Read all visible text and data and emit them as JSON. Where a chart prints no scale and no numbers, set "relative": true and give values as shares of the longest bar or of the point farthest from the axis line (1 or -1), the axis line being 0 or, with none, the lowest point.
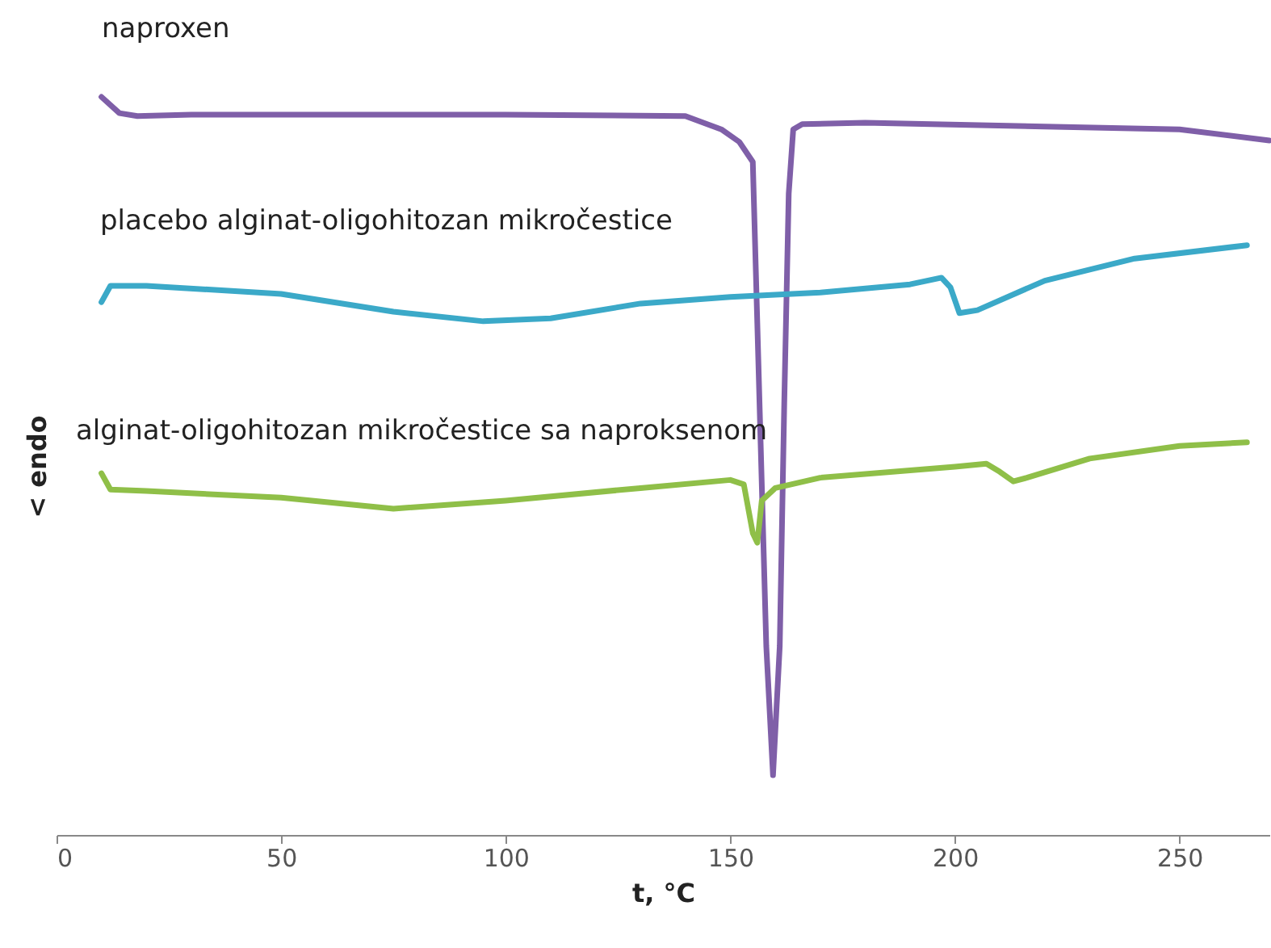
{
  "chart_data": {
    "type": "line",
    "relative": true,
    "xlabel": "t, °C",
    "ylabel": "< endo",
    "xlim": [
      0,
      270
    ],
    "xticks": [
      0,
      50,
      100,
      150,
      200,
      250
    ],
    "grid": false,
    "marker": "none",
    "line_style": "solid",
    "series": [
      {
        "name": "naproxen",
        "color": "#7f5fa8",
        "x": [
          10,
          14,
          18,
          30,
          100,
          140,
          148,
          152,
          155,
          156,
          158,
          159.5,
          161,
          162,
          163,
          164,
          166,
          180,
          250,
          270
        ],
        "values": [
          1.0,
          0.978,
          0.974,
          0.976,
          0.976,
          0.974,
          0.956,
          0.939,
          0.912,
          0.694,
          0.256,
          0.081,
          0.256,
          0.584,
          0.869,
          0.956,
          0.963,
          0.965,
          0.956,
          0.941
        ]
      },
      {
        "name": "placebo alginat-oligohitozan mikročestice",
        "color": "#3ba9c8",
        "x": [
          10,
          12,
          20,
          50,
          75,
          95,
          110,
          130,
          150,
          170,
          190,
          197,
          199,
          201,
          205,
          220,
          240,
          265
        ],
        "values": [
          0.722,
          0.744,
          0.744,
          0.733,
          0.709,
          0.696,
          0.7,
          0.72,
          0.729,
          0.735,
          0.746,
          0.755,
          0.742,
          0.707,
          0.711,
          0.751,
          0.781,
          0.799
        ]
      },
      {
        "name": "alginat-oligohitozan mikročestice sa naproksenom",
        "color": "#8fbf48",
        "x": [
          10,
          12,
          20,
          50,
          75,
          100,
          130,
          150,
          153,
          155,
          156,
          157,
          160,
          170,
          200,
          207,
          210,
          213,
          216,
          230,
          250,
          265
        ],
        "values": [
          0.49,
          0.468,
          0.466,
          0.457,
          0.442,
          0.453,
          0.47,
          0.481,
          0.475,
          0.409,
          0.396,
          0.453,
          0.47,
          0.484,
          0.499,
          0.503,
          0.492,
          0.479,
          0.484,
          0.51,
          0.527,
          0.532
        ]
      }
    ]
  }
}
